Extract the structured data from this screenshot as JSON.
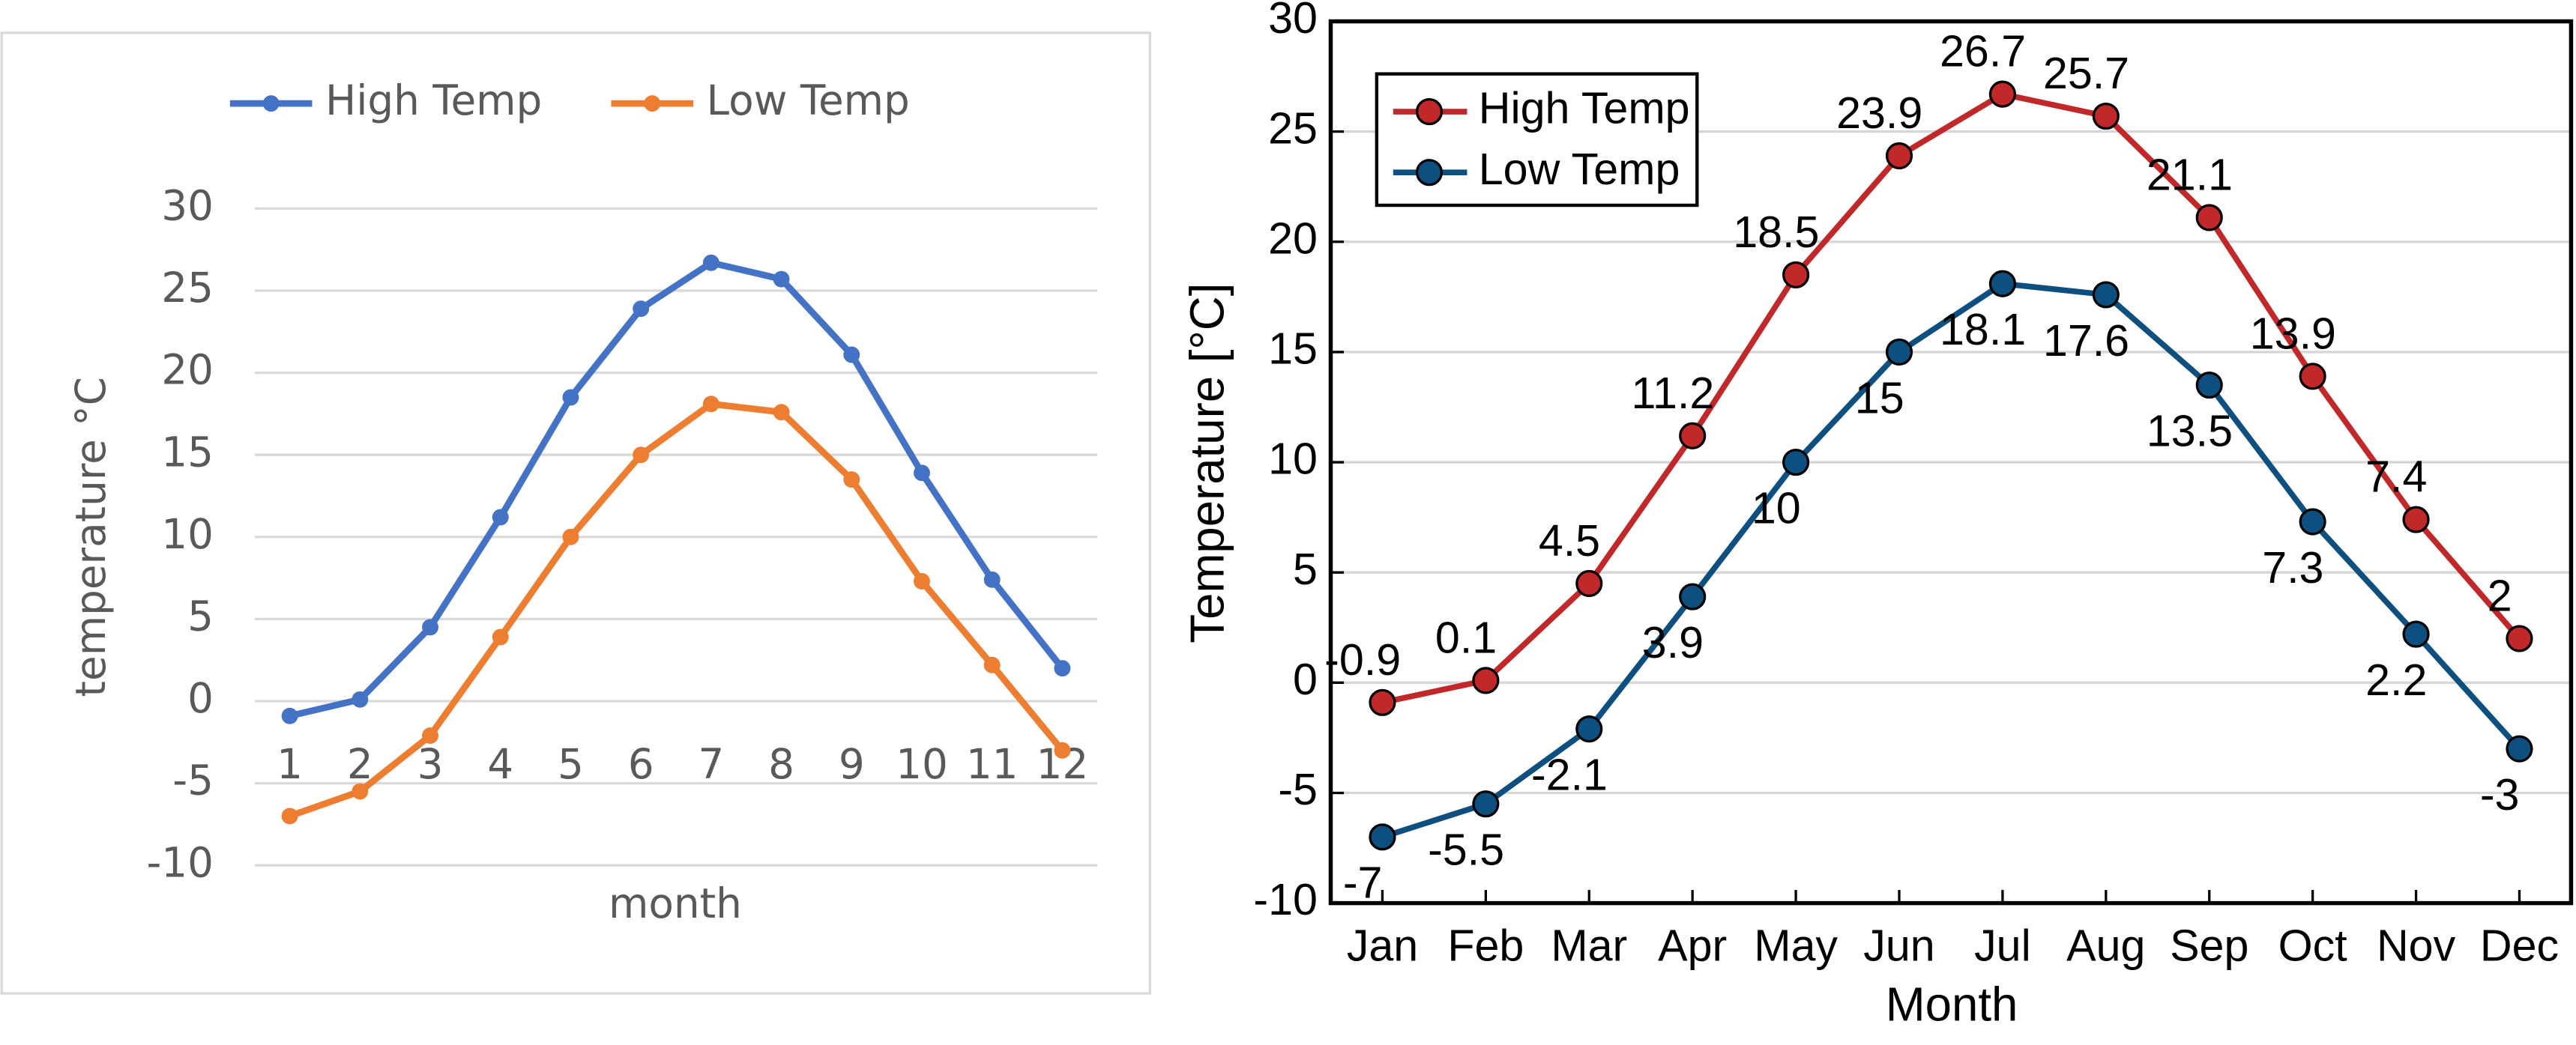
{
  "chart_data": [
    {
      "type": "line",
      "categories": [
        "1",
        "2",
        "3",
        "4",
        "5",
        "6",
        "7",
        "8",
        "9",
        "10",
        "11",
        "12"
      ],
      "series": [
        {
          "name": "High Temp",
          "color": "#4472c4",
          "values": [
            -0.9,
            0.1,
            4.5,
            11.2,
            18.5,
            23.9,
            26.7,
            25.7,
            21.1,
            13.9,
            7.4,
            2
          ]
        },
        {
          "name": "Low Temp",
          "color": "#ed7d31",
          "values": [
            -7,
            -5.5,
            -2.1,
            3.9,
            10,
            15,
            18.1,
            17.6,
            13.5,
            7.3,
            2.2,
            -3
          ]
        }
      ],
      "x_label": "month",
      "y_label": "temperature °C",
      "ylim": [
        -10,
        30
      ],
      "yticks": [
        -10,
        -5,
        0,
        5,
        10,
        15,
        20,
        25,
        30
      ],
      "grid": true,
      "legend": "top"
    },
    {
      "type": "line",
      "categories": [
        "Jan",
        "Feb",
        "Mar",
        "Apr",
        "May",
        "Jun",
        "Jul",
        "Aug",
        "Sep",
        "Oct",
        "Nov",
        "Dec"
      ],
      "series": [
        {
          "name": "High Temp",
          "color": "#c0282a",
          "values": [
            -0.9,
            0.1,
            4.5,
            11.2,
            18.5,
            23.9,
            26.7,
            25.7,
            21.1,
            13.9,
            7.4,
            2
          ]
        },
        {
          "name": "Low Temp",
          "color": "#0d4f7e",
          "values": [
            -7,
            -5.5,
            -2.1,
            3.9,
            10,
            15,
            18.1,
            17.6,
            13.5,
            7.3,
            2.2,
            -3
          ]
        }
      ],
      "x_label": "Month",
      "y_label": "Temperature [°C]",
      "ylim": [
        -10,
        30
      ],
      "yticks": [
        -10,
        -5,
        0,
        5,
        10,
        15,
        20,
        25,
        30
      ],
      "grid": true,
      "legend": "upper left",
      "data_labels": true
    }
  ]
}
